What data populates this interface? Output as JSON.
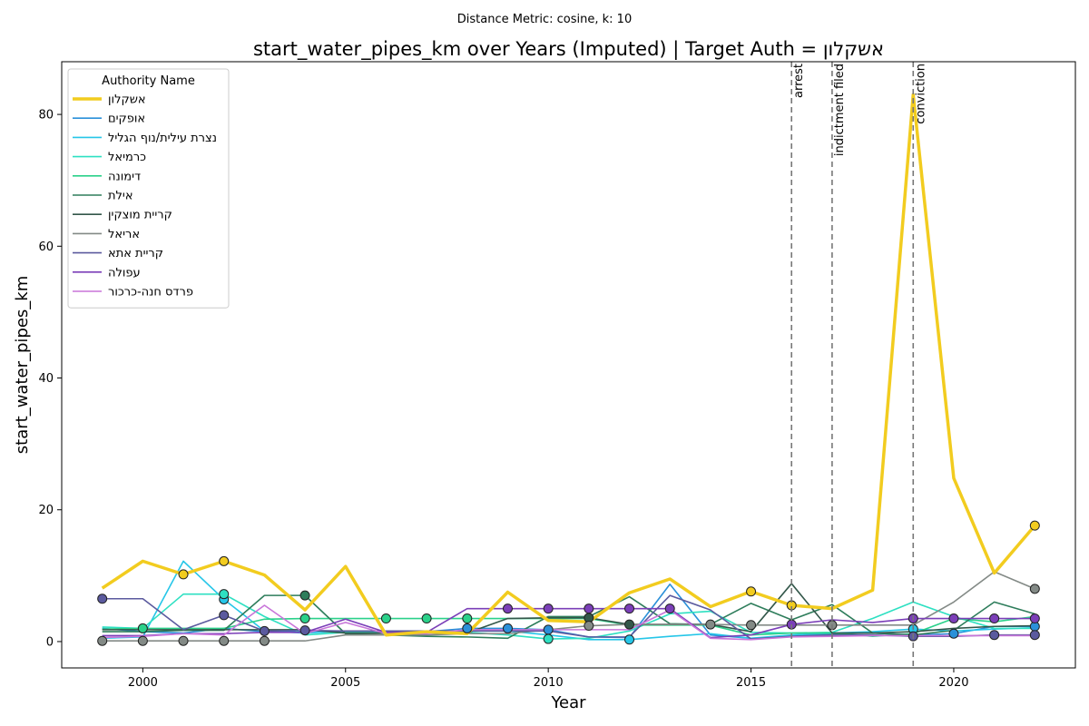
{
  "suptitle": "Distance Metric: cosine, k: 10",
  "chart_data": {
    "type": "line",
    "title": "start_water_pipes_km over Years (Imputed) | Target Auth = אשקלון",
    "xlabel": "Year",
    "ylabel": "start_water_pipes_km",
    "xlim": [
      1998,
      2023
    ],
    "ylim": [
      -4,
      88
    ],
    "xticks": [
      2000,
      2005,
      2010,
      2015,
      2020
    ],
    "yticks": [
      0,
      20,
      40,
      60,
      80
    ],
    "grid": false,
    "legend": {
      "title": "Authority Name",
      "placement": "top-left"
    },
    "x": [
      1999,
      2000,
      2001,
      2002,
      2003,
      2004,
      2005,
      2006,
      2007,
      2008,
      2009,
      2010,
      2011,
      2012,
      2013,
      2014,
      2015,
      2016,
      2017,
      2018,
      2019,
      2020,
      2021,
      2022
    ],
    "events": [
      {
        "x": 2016,
        "label": "arrest"
      },
      {
        "x": 2017,
        "label": "indictment filed"
      },
      {
        "x": 2019,
        "label": "conviction"
      }
    ],
    "series": [
      {
        "name": "אשקלון",
        "color": "#f2cc1f",
        "target": true,
        "values": [
          8.1,
          12.2,
          10.2,
          12.2,
          10.1,
          4.8,
          11.4,
          1.0,
          1.5,
          1.2,
          7.5,
          3.2,
          3.0,
          7.4,
          9.5,
          5.3,
          7.6,
          5.5,
          5.0,
          7.8,
          83.0,
          24.8,
          10.4,
          17.6
        ],
        "markers": [
          2001,
          2002,
          2015,
          2016,
          2022
        ]
      },
      {
        "name": "אופקים",
        "color": "#2b90d9",
        "values": [
          2.0,
          1.5,
          1.3,
          2.0,
          1.5,
          1.5,
          1.5,
          1.5,
          1.5,
          2.0,
          2.0,
          1.8,
          0.7,
          0.6,
          8.7,
          1.0,
          0.5,
          0.8,
          1.2,
          1.3,
          1.0,
          1.2,
          2.3,
          2.3
        ],
        "markers": [
          2008,
          2009,
          2010,
          2020,
          2022
        ]
      },
      {
        "name": "נצרת עילית/נוף הגליל",
        "color": "#26c6e8",
        "values": [
          0.5,
          0.7,
          12.2,
          6.4,
          1.6,
          1.3,
          1.6,
          1.6,
          1.6,
          1.6,
          1.6,
          1.0,
          0.3,
          0.3,
          0.8,
          1.2,
          0.5,
          1.0,
          1.3,
          1.5,
          1.9,
          1.6,
          1.9,
          2.1
        ],
        "markers": [
          2002,
          2012,
          2019
        ]
      },
      {
        "name": "כרמיאל",
        "color": "#2ee0c2",
        "values": [
          2.2,
          2.0,
          7.2,
          7.2,
          3.8,
          1.0,
          1.4,
          1.6,
          1.6,
          1.4,
          1.0,
          0.4,
          0.5,
          1.6,
          4.2,
          4.6,
          1.4,
          1.3,
          1.4,
          3.5,
          6.0,
          3.8,
          2.0,
          2.0
        ],
        "markers": [
          2002,
          2010
        ]
      },
      {
        "name": "דימונה",
        "color": "#2bd18a",
        "values": [
          1.9,
          2.0,
          2.0,
          2.0,
          3.4,
          3.5,
          3.5,
          3.5,
          3.5,
          3.5,
          3.5,
          3.5,
          3.5,
          2.5,
          2.5,
          2.5,
          1.0,
          1.3,
          1.3,
          0.8,
          1.2,
          3.5,
          3.0,
          3.8
        ],
        "markers": [
          2000,
          2004,
          2006,
          2007,
          2008
        ]
      },
      {
        "name": "אילת",
        "color": "#2e7d5b",
        "values": [
          1.5,
          1.5,
          1.7,
          1.7,
          7.0,
          7.0,
          1.2,
          1.0,
          0.8,
          0.7,
          0.5,
          3.8,
          3.8,
          6.8,
          2.7,
          2.6,
          5.8,
          3.3,
          5.6,
          1.3,
          1.0,
          1.7,
          6.0,
          4.2
        ],
        "markers": [
          2004
        ]
      },
      {
        "name": "קריית מוצקין",
        "color": "#33574a",
        "values": [
          1.8,
          1.8,
          1.8,
          1.8,
          1.8,
          1.8,
          1.3,
          1.3,
          1.3,
          1.3,
          3.5,
          3.6,
          3.6,
          2.6,
          2.6,
          2.6,
          1.5,
          8.8,
          1.3,
          1.3,
          1.5,
          2.0,
          2.3,
          2.4
        ],
        "markers": [
          2011,
          2012
        ]
      },
      {
        "name": "אריאל",
        "color": "#838a86",
        "values": [
          0.1,
          0.1,
          0.1,
          0.1,
          0.1,
          0.1,
          1.0,
          1.0,
          1.0,
          1.2,
          1.2,
          1.8,
          2.4,
          2.6,
          2.6,
          2.6,
          2.5,
          2.5,
          2.5,
          2.5,
          2.5,
          6.0,
          10.6,
          8.0
        ],
        "markers": [
          1999,
          2000,
          2001,
          2002,
          2003,
          2011,
          2014,
          2015,
          2017,
          2022
        ]
      },
      {
        "name": "קריית אתא",
        "color": "#5b5a9e",
        "values": [
          6.5,
          6.5,
          1.8,
          4.0,
          1.6,
          1.7,
          1.6,
          1.6,
          1.6,
          1.6,
          1.6,
          1.6,
          0.7,
          0.7,
          7.0,
          4.8,
          0.4,
          0.8,
          1.0,
          1.0,
          0.8,
          0.8,
          1.0,
          1.0
        ],
        "markers": [
          1999,
          2002,
          2003,
          2004,
          2019,
          2021,
          2022
        ]
      },
      {
        "name": "עפולה",
        "color": "#7b3fb8",
        "values": [
          0.9,
          0.9,
          1.2,
          1.2,
          1.4,
          1.4,
          3.4,
          1.4,
          1.4,
          5.0,
          5.0,
          5.0,
          5.0,
          5.0,
          5.0,
          0.6,
          1.0,
          2.6,
          3.3,
          2.9,
          3.5,
          3.5,
          3.5,
          3.5
        ],
        "markers": [
          2009,
          2010,
          2011,
          2012,
          2013,
          2016,
          2019,
          2020,
          2021,
          2022
        ]
      },
      {
        "name": "פרדס חנה-כרכור",
        "color": "#c875d9",
        "values": [
          0.6,
          0.8,
          1.2,
          1.0,
          5.5,
          1.2,
          2.9,
          1.2,
          1.2,
          1.8,
          1.8,
          1.8,
          1.8,
          1.8,
          4.8,
          0.5,
          0.3,
          0.7,
          0.8,
          0.9,
          0.9,
          0.9,
          0.9,
          0.9
        ],
        "markers": []
      }
    ]
  }
}
